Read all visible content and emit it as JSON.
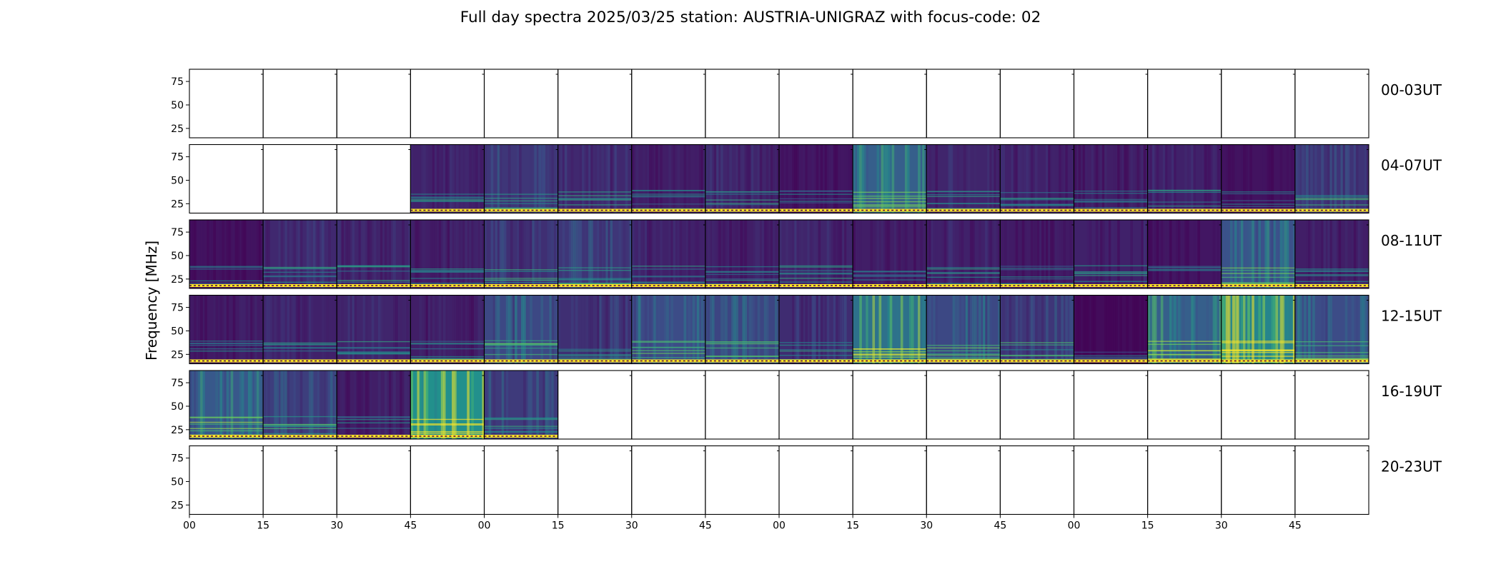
{
  "chart_data": {
    "type": "heatmap",
    "title": "Full day spectra 2025/03/25 station: AUSTRIA-UNIGRAZ with focus-code: 02",
    "ylabel": "Frequency [MHz]",
    "xlabel": "",
    "y_ticks": [
      "75",
      "50",
      "25"
    ],
    "x_ticks": [
      "00",
      "15",
      "30",
      "45",
      "00",
      "15",
      "30",
      "45",
      "00",
      "15",
      "30",
      "45",
      "00",
      "15",
      "30",
      "45"
    ],
    "rows": [
      "00-03UT",
      "04-07UT",
      "08-11UT",
      "12-15UT",
      "16-19UT",
      "20-23UT"
    ],
    "cells_per_row": 16,
    "colormap": [
      "#440154",
      "#3b528b",
      "#21918c",
      "#5ec962",
      "#fde725"
    ],
    "intensity": [
      [
        0,
        0,
        0,
        0,
        0,
        0,
        0,
        0,
        0,
        0,
        0,
        0,
        0,
        0,
        0,
        0
      ],
      [
        0,
        0,
        0,
        0.18,
        0.3,
        0.22,
        0.16,
        0.2,
        0.12,
        0.55,
        0.2,
        0.18,
        0.16,
        0.18,
        0.1,
        0.28
      ],
      [
        0.1,
        0.22,
        0.2,
        0.16,
        0.26,
        0.3,
        0.18,
        0.16,
        0.2,
        0.16,
        0.18,
        0.14,
        0.18,
        0.12,
        0.45,
        0.16
      ],
      [
        0.14,
        0.18,
        0.2,
        0.16,
        0.4,
        0.26,
        0.42,
        0.38,
        0.24,
        0.68,
        0.4,
        0.3,
        0.06,
        0.55,
        0.82,
        0.42
      ],
      [
        0.5,
        0.34,
        0.16,
        0.9,
        0.32,
        0,
        0,
        0,
        0,
        0,
        0,
        0,
        0,
        0,
        0,
        0
      ],
      [
        0,
        0,
        0,
        0,
        0,
        0,
        0,
        0,
        0,
        0,
        0,
        0,
        0,
        0,
        0,
        0
      ]
    ]
  }
}
